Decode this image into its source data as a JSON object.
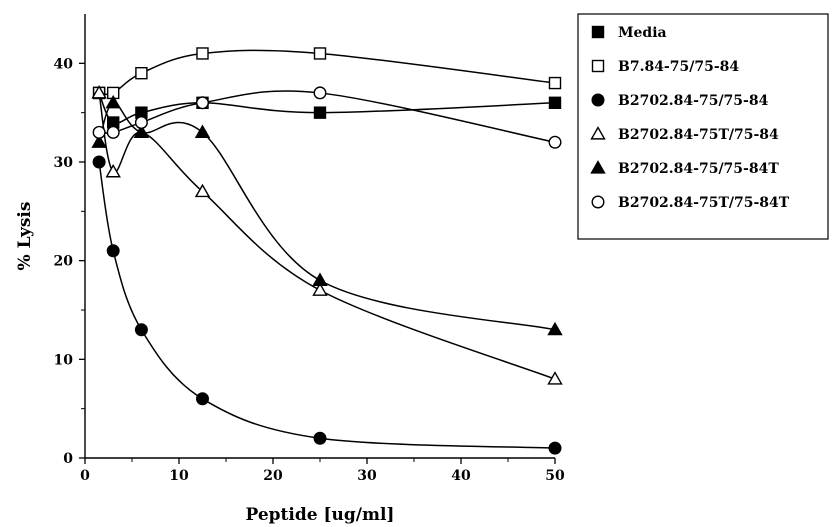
{
  "chart_data": {
    "type": "line",
    "title": "",
    "xlabel": "Peptide [ug/ml]",
    "ylabel": "% Lysis",
    "xlim": [
      0,
      50
    ],
    "ylim": [
      0,
      45
    ],
    "xticks": [
      0,
      10,
      20,
      30,
      40,
      50
    ],
    "yticks": [
      0,
      10,
      20,
      30,
      40
    ],
    "x": [
      1.5,
      3,
      6,
      12.5,
      25,
      50
    ],
    "grid": false,
    "legend_position": "right",
    "series": [
      {
        "name": "Media",
        "marker": "filled-square",
        "values": [
          37,
          34,
          35,
          36,
          35,
          36
        ]
      },
      {
        "name": "B7.84-75/75-84",
        "marker": "open-square",
        "values": [
          37,
          37,
          39,
          41,
          41,
          38
        ]
      },
      {
        "name": "B2702.84-75/75-84",
        "marker": "filled-circle",
        "values": [
          30,
          21,
          13,
          6,
          2,
          1
        ]
      },
      {
        "name": "B2702.84-75T/75-84",
        "marker": "open-triangle",
        "values": [
          37,
          29,
          33,
          27,
          17,
          8
        ]
      },
      {
        "name": "B2702.84-75/75-84T",
        "marker": "filled-triangle",
        "values": [
          32,
          36,
          33,
          33,
          18,
          13
        ]
      },
      {
        "name": "B2702.84-75T/75-84T",
        "marker": "open-circle",
        "values": [
          33,
          33,
          34,
          36,
          37,
          32
        ]
      }
    ]
  }
}
